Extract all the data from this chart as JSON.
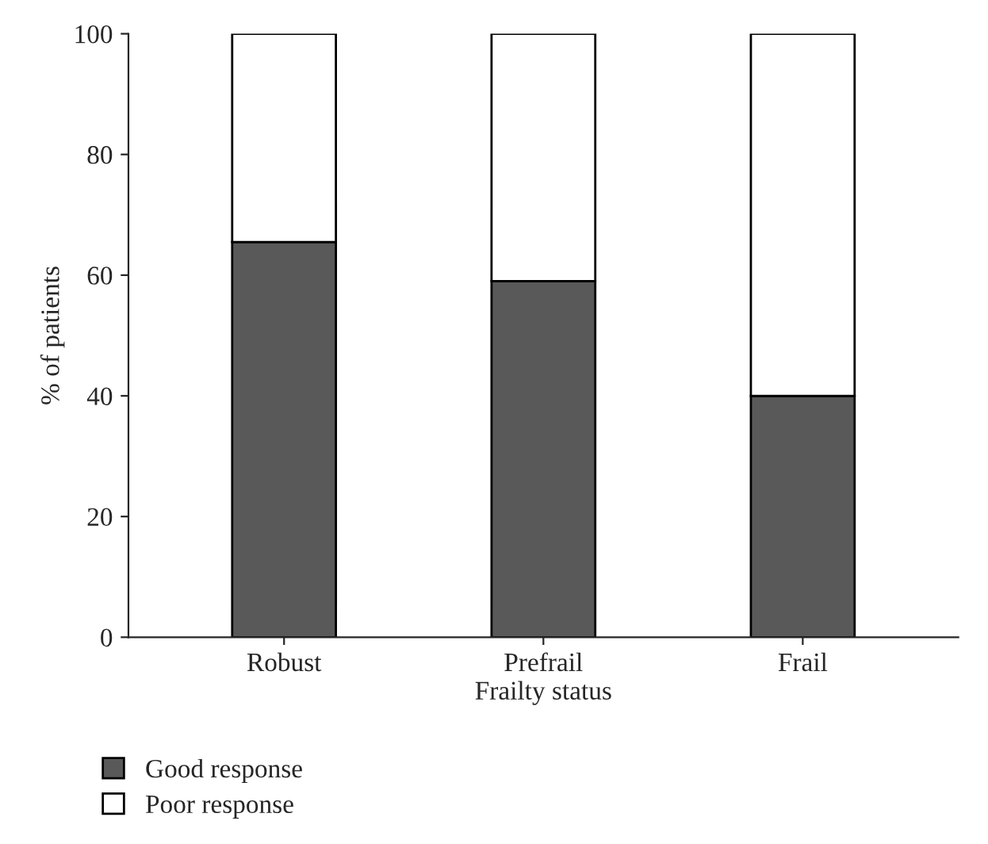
{
  "chart_data": {
    "type": "bar",
    "stacked": true,
    "xlabel": "Frailty status",
    "ylabel": "% of patients",
    "categories": [
      "Robust",
      "Prefrail",
      "Frail"
    ],
    "series": [
      {
        "name": "Good response",
        "color": "#595959",
        "values": [
          65.5,
          59,
          40
        ]
      },
      {
        "name": "Poor response",
        "color": "#ffffff",
        "values": [
          34.5,
          41,
          60
        ]
      }
    ],
    "ylim": [
      0,
      100
    ],
    "yticks": [
      0,
      20,
      40,
      60,
      80,
      100
    ],
    "grid": false,
    "legend": "bottom"
  }
}
